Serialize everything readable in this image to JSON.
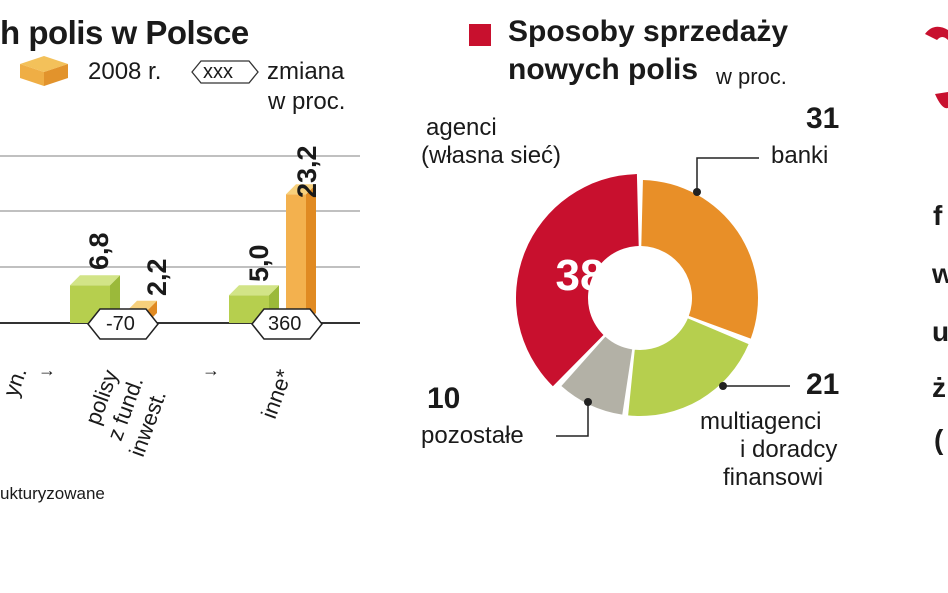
{
  "left_chart": {
    "title": "h polis w Polsce",
    "legend": {
      "year_label": "2008 r.",
      "change_marker": "xxx",
      "change_label_line1": "zmiana",
      "change_label_line2": "w proc."
    },
    "footnote": "ukturyzowane",
    "cut_label": "yn.",
    "arrow": "→"
  },
  "right_chart": {
    "title_line1": "Sposoby sprzedaży",
    "title_line2": "nowych polis",
    "unit": "w proc.",
    "edge_glyphs": [
      "f",
      "w",
      "u",
      "ż",
      "("
    ]
  },
  "colors": {
    "accent_red": "#c8102e",
    "orange": "#e88f28",
    "green": "#b6cf4e",
    "gray": "#b3b1a6",
    "gridline": "#9a9a9a"
  },
  "chart_data": [
    {
      "type": "bar",
      "categories": [
        "polisy z fund. inwest.",
        "inne*"
      ],
      "category_lines": [
        [
          "polisy",
          "z fund.",
          "inwest."
        ],
        [
          "inne*"
        ]
      ],
      "series": [
        {
          "values": [
            6.8,
            5.0
          ]
        },
        {
          "name": "2008 r.",
          "values": [
            2.2,
            23.2
          ]
        }
      ],
      "value_labels": [
        [
          "6,8",
          "2,2"
        ],
        [
          "5,0",
          "23,2"
        ]
      ],
      "changes": [
        "-70",
        "360"
      ]
    },
    {
      "type": "pie",
      "labels": [
        "agenci (własna sieć)",
        "banki",
        "multiagenci i doradcy finansowi",
        "pozostałe"
      ],
      "label_lines": [
        [
          "agenci",
          "(własna sieć)"
        ],
        [
          "banki"
        ],
        [
          "multiagenci",
          "i doradcy",
          "finansowi"
        ],
        [
          "pozostałe"
        ]
      ],
      "values": [
        38,
        31,
        21,
        10
      ],
      "value_labels": [
        "38",
        "31",
        "21",
        "10"
      ]
    }
  ]
}
